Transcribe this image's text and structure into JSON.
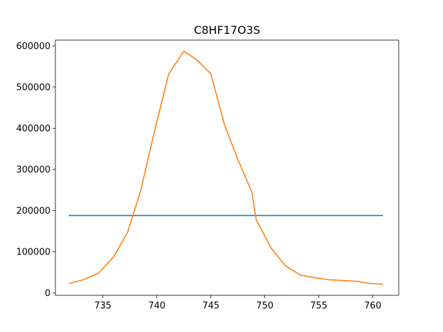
{
  "chart_data": {
    "type": "line",
    "title": "C8HF17O3S",
    "xlabel": "",
    "ylabel": "",
    "xlim": [
      730.6,
      762.4
    ],
    "ylim": [
      -6000,
      614000
    ],
    "grid": false,
    "legend": "none",
    "x_ticks": [
      735,
      740,
      745,
      750,
      755,
      760
    ],
    "x_tick_labels": [
      "735",
      "740",
      "745",
      "750",
      "755",
      "760"
    ],
    "y_ticks": [
      0,
      100000,
      200000,
      300000,
      400000,
      500000,
      600000
    ],
    "y_tick_labels": [
      "0",
      "100000",
      "200000",
      "300000",
      "400000",
      "500000",
      "600000"
    ],
    "series": [
      {
        "color": "#1f77b4",
        "x": [
          731.9,
          760.9
        ],
        "y": [
          188000,
          188000
        ]
      },
      {
        "color": "#ff7f0e",
        "x": [
          731.9,
          733.2,
          734.6,
          736.0,
          737.3,
          738.5,
          739.8,
          741.1,
          742.5,
          743.7,
          745.0,
          746.3,
          747.6,
          748.8,
          749.2,
          750.6,
          751.9,
          753.3,
          754.6,
          755.9,
          757.2,
          758.5,
          759.7,
          760.9
        ],
        "y": [
          23000,
          32000,
          48000,
          88000,
          148000,
          248000,
          395000,
          532000,
          587000,
          566000,
          532000,
          405000,
          318000,
          245000,
          178000,
          108000,
          66000,
          43000,
          37000,
          32000,
          30000,
          28000,
          23000,
          21000
        ]
      }
    ]
  }
}
